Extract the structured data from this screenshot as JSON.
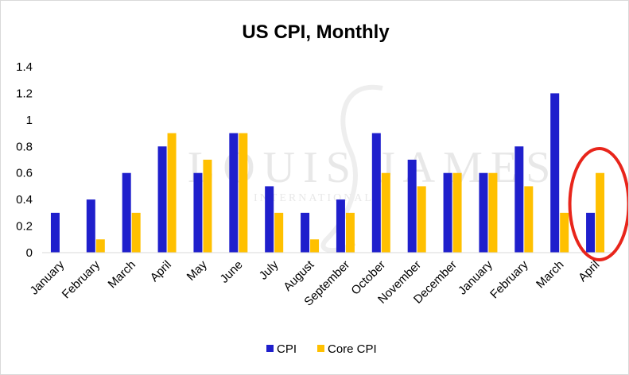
{
  "chart_data": {
    "type": "bar",
    "title": "US CPI, Monthly",
    "xlabel": "",
    "ylabel": "",
    "categories": [
      "January",
      "February",
      "March",
      "April",
      "May",
      "June",
      "July",
      "August",
      "September",
      "October",
      "November",
      "December",
      "January",
      "February",
      "March",
      "April"
    ],
    "series": [
      {
        "name": "CPI",
        "color": "#1f1fcc",
        "values": [
          0.3,
          0.4,
          0.6,
          0.8,
          0.6,
          0.9,
          0.5,
          0.3,
          0.4,
          0.9,
          0.7,
          0.6,
          0.6,
          0.8,
          1.2,
          0.3
        ]
      },
      {
        "name": "Core CPI",
        "color": "#ffc000",
        "values": [
          0,
          0.1,
          0.3,
          0.9,
          0.7,
          0.9,
          0.3,
          0.1,
          0.3,
          0.6,
          0.5,
          0.6,
          0.6,
          0.5,
          0.3,
          0.6
        ]
      }
    ],
    "ylim": [
      0,
      1.4
    ],
    "yticks": [
      "0",
      "0.2",
      "0.4",
      "0.6",
      "0.8",
      "1",
      "1.2",
      "1.4"
    ],
    "grid": false,
    "legend_position": "bottom",
    "annotation": {
      "type": "circle",
      "color": "#e8251b",
      "target_category_index": 15
    }
  },
  "watermark": {
    "text": "LOUIS JAMES",
    "subtext": "INTERNATIONAL"
  }
}
